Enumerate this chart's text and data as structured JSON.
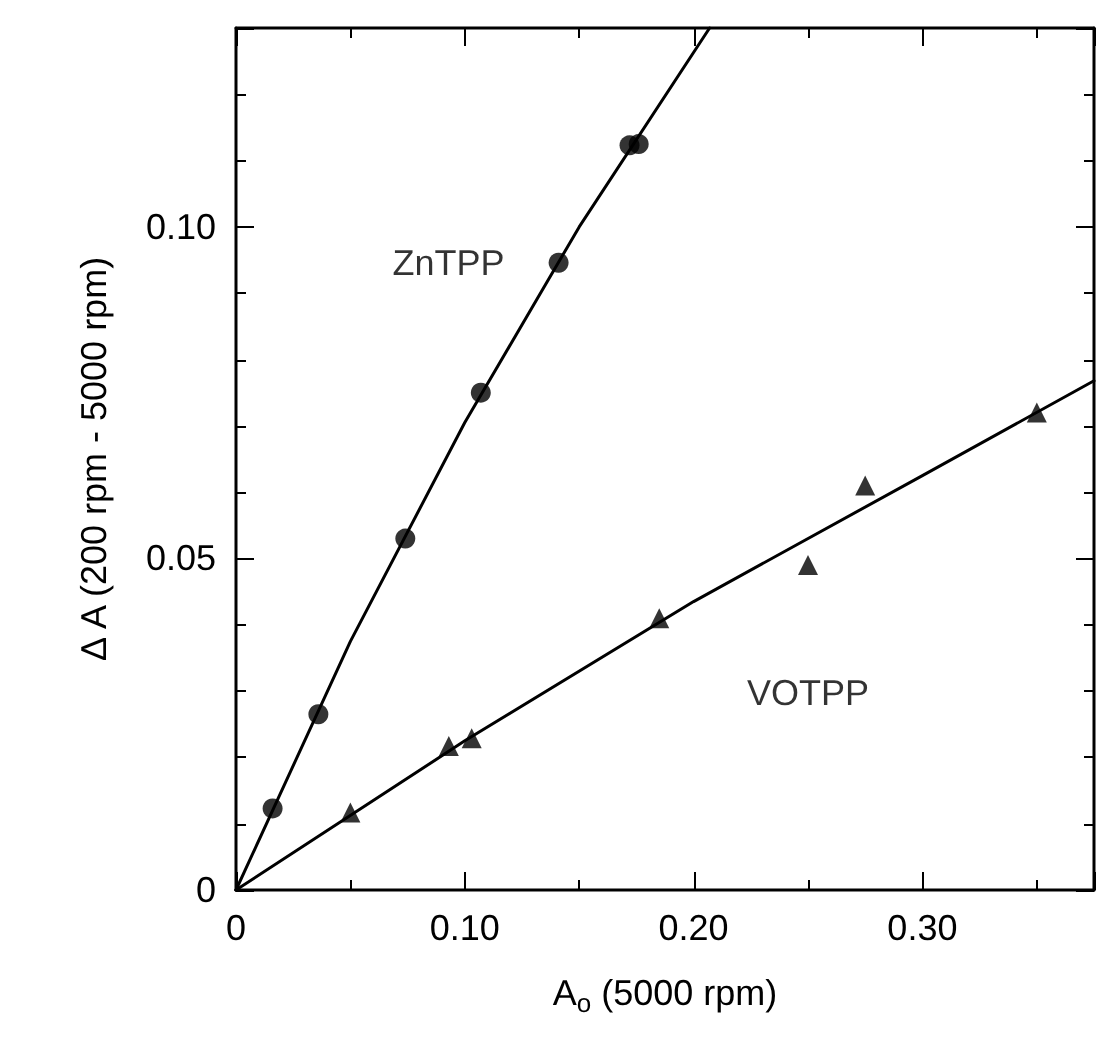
{
  "chart_data": {
    "type": "scatter",
    "xlabel": "A$_{o}$ (5000 rpm)",
    "ylabel": "Δ A (200 rpm - 5000 rpm)",
    "xlim": [
      0,
      0.375
    ],
    "ylim": [
      0,
      0.13
    ],
    "xticks": [
      0,
      {
        "value": 0.1,
        "label": "0.10"
      },
      {
        "value": 0.2,
        "label": "0.20"
      },
      {
        "value": 0.3,
        "label": "0.30"
      }
    ],
    "yticks": [
      0,
      {
        "value": 0.05,
        "label": "0.05"
      },
      {
        "value": 0.1,
        "label": "0.10"
      }
    ],
    "grid": false,
    "series": [
      {
        "name": "ZnTPP",
        "color": "#000000",
        "marker": "circle",
        "x": [
          0.016,
          0.036,
          0.074,
          0.107,
          0.141,
          0.172,
          0.176
        ],
        "values": [
          0.0123,
          0.0265,
          0.053,
          0.075,
          0.0946,
          0.1123,
          0.1125
        ]
      },
      {
        "type": "line",
        "color": "#000000",
        "marker": "none",
        "line_style": "solid",
        "x": [
          0,
          0.05,
          0.1,
          0.15,
          0.207
        ],
        "values": [
          0,
          0.0375,
          0.0705,
          0.1,
          0.13
        ]
      },
      {
        "name": "VOTPP",
        "color": "#000000",
        "marker": "triangle",
        "x": [
          0.05,
          0.093,
          0.103,
          0.185,
          0.25,
          0.275,
          0.35
        ],
        "values": [
          0.0117,
          0.0217,
          0.0229,
          0.041,
          0.049,
          0.061,
          0.072
        ]
      },
      {
        "type": "line",
        "color": "#000000",
        "marker": "none",
        "line_style": "solid",
        "x": [
          0,
          0.1,
          0.2,
          0.3,
          0.375
        ],
        "values": [
          0,
          0.0225,
          0.0435,
          0.0625,
          0.0768
        ]
      }
    ]
  }
}
